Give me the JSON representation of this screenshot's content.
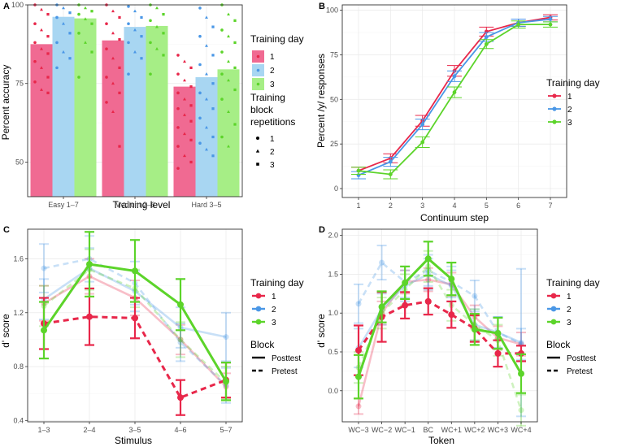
{
  "colors": {
    "day1": "#e8274a",
    "day2": "#4a97e6",
    "day3": "#5cd42a"
  },
  "chart_data": [
    {
      "panel": "A",
      "type": "bar",
      "xlabel": "Training level",
      "ylabel": "Percent accuracy",
      "ylim": [
        39,
        100
      ],
      "yticks": [
        50,
        75,
        100
      ],
      "categories": [
        "Easy 1–7",
        "Medium 2–6",
        "Hard 3–5"
      ],
      "series": [
        {
          "name": "1",
          "values": [
            87.5,
            88.7,
            74.0
          ]
        },
        {
          "name": "2",
          "values": [
            96.2,
            93.0,
            77.0
          ]
        },
        {
          "name": "3",
          "values": [
            95.7,
            93.3,
            79.5
          ]
        }
      ],
      "points": [
        {
          "cat": 0,
          "day": 0,
          "values": [
            100,
            98.5,
            97,
            94,
            92,
            90,
            88,
            86,
            84.5,
            82,
            80,
            77,
            75.5,
            73,
            72
          ]
        },
        {
          "cat": 0,
          "day": 1,
          "values": [
            100,
            99,
            97.5,
            96,
            94,
            91,
            88,
            85,
            83,
            80
          ]
        },
        {
          "cat": 0,
          "day": 2,
          "values": [
            100,
            99,
            98,
            97,
            95.5,
            94,
            91,
            88,
            85,
            77
          ]
        },
        {
          "cat": 1,
          "day": 0,
          "values": [
            100,
            98,
            96,
            94,
            91,
            89,
            86,
            83,
            80,
            77,
            75,
            72,
            69,
            66,
            55
          ]
        },
        {
          "cat": 1,
          "day": 1,
          "values": [
            99.5,
            98,
            96,
            94,
            92,
            90,
            88,
            85,
            83,
            78
          ]
        },
        {
          "cat": 1,
          "day": 2,
          "values": [
            100,
            99,
            97,
            95,
            93,
            91,
            88,
            86,
            84,
            78
          ]
        },
        {
          "cat": 2,
          "day": 0,
          "values": [
            84,
            82,
            80,
            78,
            76,
            74,
            72,
            70,
            68,
            67,
            65,
            63,
            61,
            59,
            57,
            55,
            52,
            50,
            48
          ]
        },
        {
          "cat": 2,
          "day": 1,
          "values": [
            99,
            96,
            93,
            90,
            87,
            84,
            81,
            78,
            75,
            72,
            70,
            67,
            64,
            61,
            58,
            56,
            54,
            52
          ]
        },
        {
          "cat": 2,
          "day": 2,
          "values": [
            100,
            97,
            95,
            92,
            90,
            88,
            85,
            82,
            80,
            78,
            76,
            73,
            70,
            66,
            62,
            58,
            55
          ]
        }
      ],
      "legend": {
        "title": "Training day",
        "items": [
          "1",
          "2",
          "3"
        ],
        "title2": "Training block repetitions",
        "shapes": [
          "1",
          "2",
          "3"
        ]
      }
    },
    {
      "panel": "B",
      "type": "line",
      "xlabel": "Continuum step",
      "ylabel": "Percent /y/ responses",
      "ylim": [
        -5,
        103
      ],
      "yticks": [
        0,
        25,
        50,
        75,
        100
      ],
      "x": [
        1,
        2,
        3,
        4,
        5,
        6,
        7
      ],
      "series": [
        {
          "name": "1",
          "values": [
            10,
            17,
            38,
            66,
            88,
            93,
            96
          ],
          "err": [
            2,
            2.5,
            3,
            3,
            2.5,
            2,
            1.5
          ]
        },
        {
          "name": "2",
          "values": [
            7.5,
            15,
            36,
            63,
            85,
            93,
            95
          ],
          "err": [
            2,
            2.5,
            3,
            3,
            2.5,
            2,
            1.5
          ]
        },
        {
          "name": "3",
          "values": [
            10,
            8,
            26,
            54,
            81,
            92,
            92
          ],
          "err": [
            2,
            2.5,
            3,
            3,
            2.5,
            2,
            1.5
          ]
        }
      ],
      "legend": {
        "title": "Training day",
        "items": [
          "1",
          "2",
          "3"
        ]
      }
    },
    {
      "panel": "C",
      "type": "line",
      "xlabel": "Stimulus",
      "ylabel": "d' score",
      "ylim": [
        0.39,
        1.82
      ],
      "yticks": [
        0.4,
        0.8,
        1.2,
        1.6
      ],
      "yticklabels": [
        "0.4",
        "0.8",
        "1.2",
        "1.6"
      ],
      "categories": [
        "1–3",
        "2–4",
        "3–5",
        "4–6",
        "5–7"
      ],
      "series": [
        {
          "name": "Day 1 Posttest",
          "values": [
            1.27,
            1.47,
            1.31,
            1.0,
            0.65
          ],
          "err": [
            0.13,
            0.13,
            0.13,
            0.11,
            0.1
          ]
        },
        {
          "name": "Day 1 Pretest",
          "values": [
            1.12,
            1.17,
            1.16,
            0.57,
            0.7
          ],
          "err": [
            0.19,
            0.21,
            0.15,
            0.13,
            0.13
          ]
        },
        {
          "name": "Day 2 Posttest",
          "values": [
            1.3,
            1.53,
            1.36,
            1.09,
            1.02
          ],
          "err": [
            0.15,
            0.15,
            0.15,
            0.15,
            0.18
          ]
        },
        {
          "name": "Day 2 Pretest",
          "values": [
            1.53,
            1.6,
            1.42,
            0.98,
            0.66
          ],
          "err": [
            0.18,
            0.17,
            0.16,
            0.14,
            0.13
          ]
        },
        {
          "name": "Day 3 Posttest",
          "values": [
            1.07,
            1.56,
            1.51,
            1.26,
            0.69
          ],
          "err": [
            0.21,
            0.24,
            0.23,
            0.19,
            0.14
          ]
        },
        {
          "name": "Day 3 Pretest",
          "values": [
            1.25,
            1.52,
            1.38,
            1.0,
            0.68
          ],
          "err": [
            0.15,
            0.15,
            0.14,
            0.13,
            0.12
          ]
        }
      ],
      "legend": {
        "title": "Training day",
        "items": [
          "1",
          "2",
          "3"
        ],
        "title2": "Block",
        "lines": [
          "Posttest",
          "Pretest"
        ]
      }
    },
    {
      "panel": "D",
      "type": "line",
      "xlabel": "Token",
      "ylabel": "d' score",
      "ylim": [
        -0.4,
        2.08
      ],
      "yticks": [
        0.0,
        0.5,
        1.0,
        1.5,
        2.0
      ],
      "yticklabels": [
        "0.0",
        "0.5",
        "1.0",
        "1.5",
        "2.0"
      ],
      "categories": [
        "WC−3",
        "WC−2",
        "WC−1",
        "BC",
        "WC+1",
        "WC+2",
        "WC+3",
        "WC+4"
      ],
      "series": [
        {
          "name": "Day 1 Posttest",
          "values": [
            -0.2,
            1.0,
            1.4,
            1.43,
            1.37,
            0.95,
            0.68,
            0.6
          ],
          "err": [
            0.1,
            0.15,
            0.15,
            0.15,
            0.15,
            0.15,
            0.15,
            0.15
          ]
        },
        {
          "name": "Day 1 Pretest",
          "values": [
            0.52,
            0.95,
            1.1,
            1.15,
            0.98,
            0.8,
            0.48,
            0.48
          ],
          "err": [
            0.32,
            0.32,
            0.17,
            0.17,
            0.17,
            0.17,
            0.17,
            0.1
          ]
        },
        {
          "name": "Day 2 Posttest",
          "values": [
            0.55,
            1.05,
            1.35,
            1.5,
            1.35,
            0.85,
            0.75,
            0.62
          ],
          "err": [
            0.25,
            0.2,
            0.2,
            0.2,
            0.2,
            0.2,
            0.2,
            0.95
          ]
        },
        {
          "name": "Day 2 Pretest",
          "values": [
            1.12,
            1.65,
            1.4,
            1.55,
            1.4,
            1.22,
            0.75,
            0.6
          ],
          "err": [
            0.25,
            0.22,
            0.2,
            0.2,
            0.2,
            0.2,
            0.2,
            0.2
          ]
        },
        {
          "name": "Day 3 Posttest",
          "values": [
            0.18,
            1.08,
            1.39,
            1.7,
            1.44,
            0.79,
            0.74,
            0.22
          ],
          "err": [
            0.28,
            0.2,
            0.21,
            0.22,
            0.21,
            0.2,
            0.2,
            0.25
          ]
        },
        {
          "name": "Day 3 Pretest",
          "values": [
            0.3,
            1.0,
            1.3,
            1.6,
            1.1,
            0.85,
            0.65,
            -0.25
          ],
          "err": [
            0.2,
            0.2,
            0.2,
            0.2,
            0.2,
            0.2,
            0.2,
            0.2
          ]
        }
      ],
      "legend": {
        "title": "Training day",
        "items": [
          "1",
          "2",
          "3"
        ],
        "title2": "Block",
        "lines": [
          "Posttest",
          "Pretest"
        ]
      }
    }
  ]
}
